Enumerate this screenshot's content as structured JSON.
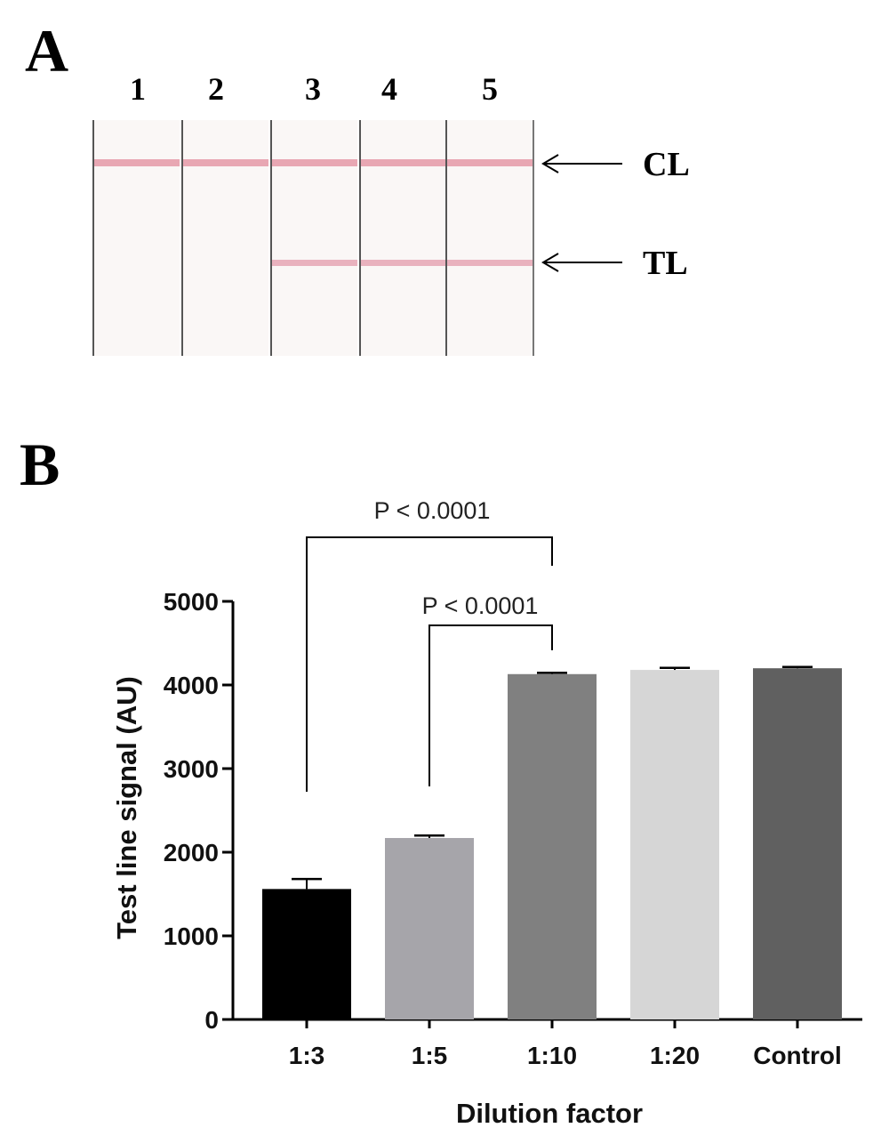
{
  "panel_a": {
    "letter": "A",
    "lanes": [
      "1",
      "2",
      "3",
      "4",
      "5"
    ],
    "lines": [
      {
        "label": "CL",
        "color": "#e8a7b3"
      },
      {
        "label": "TL",
        "color": "#e9b2be"
      }
    ],
    "test_line_visible": [
      false,
      false,
      true,
      true,
      true
    ]
  },
  "panel_b": {
    "letter": "B"
  },
  "chart_data": {
    "type": "bar",
    "categories": [
      "1:3",
      "1:5",
      "1:10",
      "1:20",
      "Control"
    ],
    "values": [
      1560,
      2170,
      4130,
      4180,
      4200
    ],
    "errors": [
      120,
      30,
      15,
      25,
      15
    ],
    "colors": [
      "#000000",
      "#a6a5aa",
      "#808080",
      "#d6d6d6",
      "#606060"
    ],
    "xlabel": "Dilution factor",
    "ylabel": "Test line signal (AU)",
    "ylim": [
      0,
      5000
    ],
    "yticks": [
      "0",
      "1000",
      "2000",
      "3000",
      "4000",
      "5000"
    ],
    "grid": false,
    "annotations": [
      {
        "text": "P < 0.0001",
        "from": "1:3",
        "to": "1:10"
      },
      {
        "text": "P < 0.0001",
        "from": "1:5",
        "to": "1:10"
      }
    ]
  }
}
